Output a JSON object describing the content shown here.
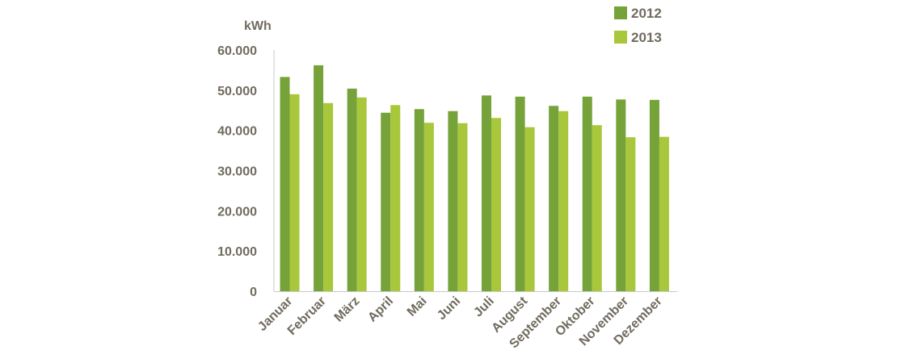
{
  "chart_data": {
    "type": "bar",
    "ylabel": "kWh",
    "ylim": [
      0,
      60000
    ],
    "yticks": [
      0,
      10000,
      20000,
      30000,
      40000,
      50000,
      60000
    ],
    "ytick_labels": [
      "0",
      "10.000",
      "20.000",
      "30.000",
      "40.000",
      "50.000",
      "60.000"
    ],
    "categories": [
      "Januar",
      "Februar",
      "März",
      "April",
      "Mai",
      "Juni",
      "Juli",
      "August",
      "September",
      "Oktober",
      "November",
      "Dezember"
    ],
    "series": [
      {
        "name": "2012",
        "color": "#76a23a",
        "values": [
          53300,
          56200,
          50400,
          44400,
          45300,
          44800,
          48700,
          48400,
          46100,
          48400,
          47700,
          47600
        ]
      },
      {
        "name": "2013",
        "color": "#a8c73a",
        "values": [
          49000,
          46800,
          48200,
          46300,
          41900,
          41800,
          43100,
          40800,
          44800,
          41300,
          38300,
          38400
        ]
      }
    ],
    "legend_position": "top-right",
    "grid": false
  }
}
